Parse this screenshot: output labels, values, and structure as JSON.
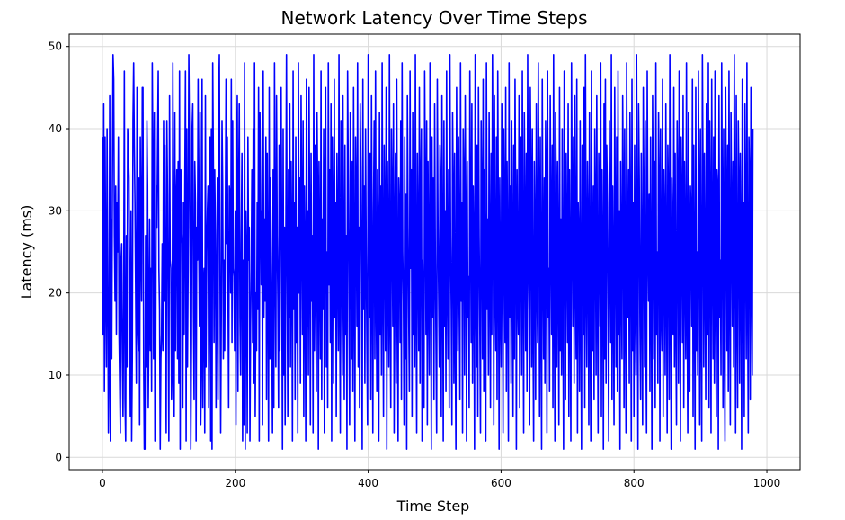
{
  "chart_data": {
    "type": "line",
    "title": "Network Latency Over Time Steps",
    "xlabel": "Time Step",
    "ylabel": "Latency (ms)",
    "xlim": [
      -50,
      1050
    ],
    "ylim": [
      -1.5,
      51.5
    ],
    "xticks": [
      0,
      200,
      400,
      600,
      800,
      1000
    ],
    "yticks": [
      0,
      10,
      20,
      30,
      40,
      50
    ],
    "xtick_labels": [
      "0",
      "200",
      "400",
      "600",
      "800",
      "1000"
    ],
    "ytick_labels": [
      "0",
      "10",
      "20",
      "30",
      "40",
      "50"
    ],
    "grid": true,
    "series": [
      {
        "name": "Latency",
        "color": "#0000ff",
        "sampling": "one value per time step, steps 0–999 (synthetic random latency 1–49 ms, estimated from figure)",
        "x_start": 0,
        "x_step": 1,
        "values": [
          39,
          15,
          43,
          8,
          39,
          21,
          11,
          40,
          23,
          3,
          11,
          44,
          2,
          29,
          12,
          33,
          49,
          46,
          27,
          19,
          33,
          15,
          31,
          25,
          39,
          15,
          9,
          3,
          24,
          26,
          12,
          5,
          19,
          47,
          7,
          2,
          27,
          11,
          40,
          37,
          34,
          17,
          5,
          30,
          2,
          12,
          41,
          48,
          38,
          31,
          20,
          9,
          45,
          16,
          13,
          34,
          4,
          39,
          27,
          19,
          45,
          45,
          12,
          1,
          1,
          27,
          11,
          41,
          33,
          6,
          16,
          29,
          13,
          23,
          8,
          48,
          35,
          12,
          42,
          2,
          7,
          33,
          28,
          38,
          47,
          23,
          18,
          1,
          12,
          15,
          26,
          13,
          41,
          19,
          38,
          17,
          3,
          41,
          32,
          17,
          2,
          44,
          24,
          23,
          7,
          11,
          48,
          23,
          5,
          42,
          13,
          31,
          35,
          12,
          36,
          9,
          47,
          1,
          35,
          28,
          26,
          6,
          31,
          15,
          33,
          47,
          2,
          40,
          11,
          23,
          49,
          39,
          24,
          1,
          14,
          40,
          43,
          18,
          7,
          36,
          31,
          2,
          28,
          24,
          46,
          26,
          16,
          42,
          4,
          12,
          46,
          6,
          21,
          23,
          3,
          44,
          11,
          25,
          30,
          33,
          6,
          22,
          39,
          2,
          40,
          1,
          48,
          36,
          14,
          35,
          27,
          6,
          21,
          34,
          7,
          44,
          49,
          22,
          3,
          18,
          41,
          33,
          12,
          24,
          13,
          28,
          46,
          26,
          39,
          21,
          6,
          33,
          32,
          20,
          46,
          14,
          41,
          23,
          22,
          13,
          30,
          4,
          36,
          44,
          8,
          32,
          43,
          17,
          10,
          27,
          37,
          2,
          24,
          4,
          48,
          1,
          30,
          24,
          3,
          39,
          24,
          28,
          2,
          16,
          23,
          35,
          14,
          40,
          9,
          48,
          5,
          20,
          13,
          31,
          18,
          45,
          2,
          42,
          33,
          21,
          30,
          4,
          47,
          17,
          29,
          19,
          39,
          7,
          37,
          22,
          2,
          45,
          12,
          34,
          25,
          16,
          3,
          35,
          6,
          48,
          25,
          11,
          44,
          27,
          19,
          6,
          38,
          13,
          32,
          45,
          21,
          1,
          40,
          10,
          28,
          4,
          26,
          49,
          22,
          5,
          35,
          17,
          43,
          11,
          36,
          25,
          2,
          47,
          18,
          31,
          7,
          39,
          14,
          28,
          3,
          48,
          20,
          34,
          9,
          44,
          29,
          15,
          41,
          5,
          33,
          23,
          2,
          46,
          16,
          30,
          10,
          45,
          26,
          4,
          37,
          19,
          27,
          3,
          49,
          13,
          38,
          22,
          8,
          42,
          32,
          1,
          36,
          24,
          12,
          47,
          7,
          29,
          18,
          40,
          3,
          33,
          45,
          11,
          25,
          6,
          48,
          21,
          35,
          14,
          43,
          2,
          39,
          28,
          9,
          46,
          17,
          31,
          5,
          37,
          25,
          13,
          49,
          20,
          3,
          41,
          30,
          10,
          44,
          23,
          7,
          38,
          15,
          27,
          1,
          47,
          34,
          19,
          4,
          42,
          26,
          12,
          36,
          8,
          45,
          22,
          2,
          39,
          31,
          16,
          48,
          11,
          28,
          6,
          43,
          35,
          21,
          1,
          46,
          18,
          33,
          9,
          40,
          25,
          14,
          4,
          49,
          29,
          17,
          37,
          7,
          44,
          23,
          3,
          30,
          41,
          12,
          47,
          20,
          8,
          35,
          27,
          2,
          42,
          15,
          33,
          10,
          48,
          22,
          5,
          38,
          29,
          13,
          45,
          1,
          36,
          24,
          11,
          49,
          18,
          6,
          40,
          31,
          16,
          43,
          3,
          27,
          37,
          9,
          46,
          21,
          2,
          34,
          30,
          14,
          41,
          7,
          48,
          25,
          19,
          4,
          39,
          12,
          32,
          1,
          44,
          28,
          17,
          8,
          47,
          23,
          35,
          5,
          42,
          15,
          30,
          11,
          49,
          20,
          3,
          37,
          26,
          13,
          45,
          9,
          33,
          40,
          2,
          24,
          18,
          6,
          47,
          31,
          15,
          41,
          4,
          36,
          22,
          10,
          48,
          28,
          1,
          39,
          17,
          34,
          7,
          43,
          25,
          14,
          3,
          46,
          29,
          20,
          11,
          38,
          33,
          5,
          44,
          24,
          2,
          41,
          16,
          30,
          8,
          47,
          21,
          12,
          35,
          6,
          49,
          27,
          18,
          4,
          42,
          32,
          9,
          37,
          15,
          1,
          45,
          26,
          13,
          39,
          23,
          7,
          48,
          19,
          31,
          3,
          40,
          34,
          10,
          44,
          28,
          2,
          36,
          17,
          22,
          6,
          47,
          30,
          14,
          43,
          9,
          33,
          25,
          1,
          49,
          20,
          11,
          38,
          5,
          45,
          27,
          16,
          3,
          41,
          31,
          12,
          46,
          8,
          35,
          22,
          2,
          48,
          18,
          29,
          10,
          42,
          24,
          6,
          37,
          15,
          49,
          32,
          4,
          44,
          21,
          13,
          39,
          7,
          47,
          27,
          1,
          34,
          19,
          11,
          43,
          26,
          3,
          40,
          30,
          14,
          45,
          8,
          36,
          23,
          2,
          48,
          17,
          33,
          9,
          41,
          25,
          5,
          38,
          12,
          46,
          29,
          1,
          35,
          20,
          15,
          44,
          6,
          31,
          39,
          10,
          47,
          22,
          3,
          42,
          28,
          13,
          37,
          8,
          49,
          24,
          18,
          4,
          45,
          33,
          11,
          40,
          16,
          2,
          36,
          27,
          7,
          43,
          21,
          14,
          48,
          30,
          5,
          39,
          19,
          1,
          46,
          25,
          12,
          34,
          9,
          41,
          31,
          3,
          47,
          17,
          23,
          8,
          44,
          28,
          15,
          38,
          6,
          49,
          20,
          2,
          42,
          32,
          11,
          36,
          24,
          4,
          45,
          13,
          29,
          10,
          40,
          18,
          1,
          47,
          33,
          7,
          37,
          26,
          14,
          43,
          5,
          35,
          21,
          2,
          48,
          30,
          16,
          39,
          9,
          44,
          23,
          12,
          46,
          3,
          31,
          27,
          8,
          41,
          19,
          1,
          38,
          34,
          15,
          45,
          6,
          49,
          22,
          11,
          36,
          28,
          4,
          42,
          17,
          2,
          47,
          25,
          13,
          33,
          7,
          40,
          30,
          10,
          44,
          20,
          3,
          37,
          29,
          16,
          48,
          5,
          35,
          24,
          1,
          43,
          12,
          46,
          9,
          38,
          31,
          18,
          2,
          41,
          26,
          14,
          49,
          7,
          33,
          21,
          4,
          45,
          27,
          11,
          39,
          8,
          47,
          15,
          30,
          1,
          36,
          23,
          12,
          44,
          32,
          6,
          40,
          19,
          3,
          48,
          25,
          17,
          35,
          9,
          42,
          28,
          2,
          46,
          13,
          31,
          5,
          38,
          20,
          10,
          49,
          24,
          1,
          43,
          34,
          16,
          7,
          37,
          22,
          4,
          45,
          29,
          11,
          41,
          14,
          3,
          47,
          27,
          19,
          32,
          8,
          39,
          21,
          1,
          44,
          30,
          12,
          36,
          6,
          48,
          15,
          25,
          9,
          42,
          33,
          2,
          40,
          18,
          13,
          46,
          5,
          35,
          28,
          10,
          43,
          23,
          3,
          38,
          31,
          7,
          49,
          20,
          1,
          34,
          26,
          15,
          45,
          11,
          37,
          17,
          4,
          41,
          32,
          9,
          47,
          22,
          2,
          39,
          30,
          14,
          44,
          6,
          36,
          24,
          12,
          48,
          19,
          3,
          42,
          27,
          8,
          33,
          29,
          16,
          46,
          5,
          38,
          21,
          1,
          45,
          13,
          25,
          10,
          47,
          31,
          4,
          40,
          18,
          2,
          49,
          34,
          11,
          37,
          23,
          7,
          43,
          28,
          15,
          48,
          6,
          41,
          30,
          3,
          46,
          26,
          12,
          39,
          9,
          47,
          21,
          5,
          35,
          33,
          1,
          44,
          17,
          24,
          10,
          48,
          29,
          6,
          40,
          15,
          2,
          45,
          31,
          13,
          38,
          8,
          47,
          22,
          4,
          42,
          30,
          16,
          36,
          11,
          49,
          27,
          3,
          44,
          19,
          6,
          41,
          33,
          9,
          37,
          25,
          1,
          46,
          14,
          31,
          5,
          43,
          28,
          12,
          48,
          20,
          3,
          39,
          34,
          7,
          45,
          23,
          10,
          40
        ]
      }
    ]
  }
}
